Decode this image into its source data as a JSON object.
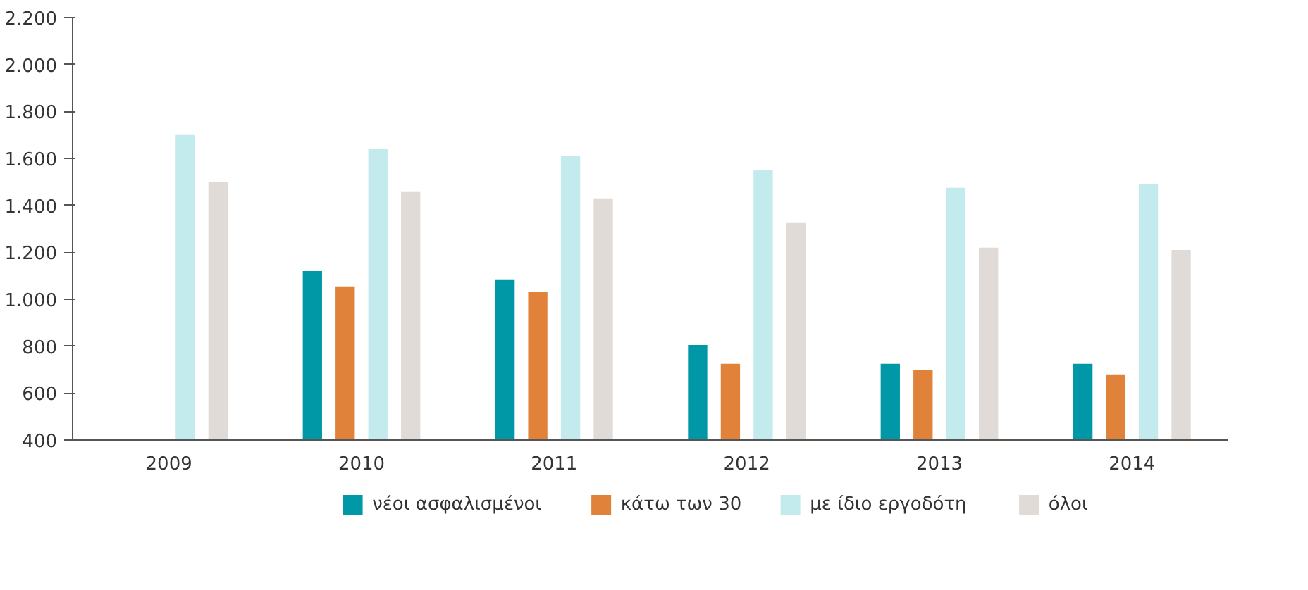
{
  "chart_data": {
    "type": "bar",
    "categories": [
      "2009",
      "2010",
      "2011",
      "2012",
      "2013",
      "2014"
    ],
    "series": [
      {
        "name": "νέοι ασφαλισμένοι",
        "color": "#0097a7",
        "values": [
          null,
          1120,
          1085,
          805,
          725,
          725
        ]
      },
      {
        "name": "κάτω των 30",
        "color": "#e0823a",
        "values": [
          null,
          1055,
          1030,
          725,
          700,
          680
        ]
      },
      {
        "name": "με ίδιο εργοδότη",
        "color": "#c3ebee",
        "values": [
          1700,
          1640,
          1610,
          1550,
          1475,
          1490
        ]
      },
      {
        "name": "όλοι",
        "color": "#e0dbd7",
        "values": [
          1500,
          1460,
          1430,
          1325,
          1220,
          1210
        ]
      }
    ],
    "ylim": [
      400,
      2200
    ],
    "yticks": [
      {
        "value": 400,
        "label": "400"
      },
      {
        "value": 600,
        "label": "600"
      },
      {
        "value": 800,
        "label": "800"
      },
      {
        "value": 1000,
        "label": "1.000"
      },
      {
        "value": 1200,
        "label": "1.200"
      },
      {
        "value": 1400,
        "label": "1.400"
      },
      {
        "value": 1600,
        "label": "1.600"
      },
      {
        "value": 1800,
        "label": "1.800"
      },
      {
        "value": 2000,
        "label": "2.000"
      },
      {
        "value": 2200,
        "label": "2.200"
      }
    ],
    "grid": false,
    "legend": "bottom"
  }
}
